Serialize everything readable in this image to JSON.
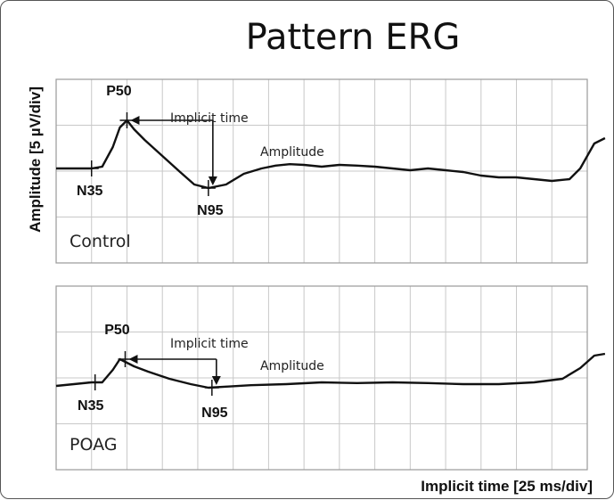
{
  "chart_data": {
    "type": "line",
    "title": "Pattern ERG",
    "xlabel": "Implicit time [25 ms/div]",
    "ylabel": "Amplitude [5 µV/div]",
    "panels": [
      {
        "name": "Control",
        "x": [
          0,
          0.5,
          1,
          1.3,
          1.6,
          1.8,
          2.0,
          2.2,
          2.5,
          3.0,
          3.5,
          3.9,
          4.3,
          4.8,
          5.3,
          5.8,
          6.2,
          6.6,
          7.0,
          7.5,
          8.0,
          8.5,
          9.0,
          9.5,
          10.0,
          10.5,
          11.0,
          11.5,
          12.0,
          12.5,
          13.0,
          13.5,
          14.0,
          14.5,
          14.8,
          15.2,
          15.5
        ],
        "y": [
          0,
          0,
          0,
          0.05,
          0.6,
          1.15,
          1.35,
          1.1,
          0.8,
          0.35,
          -0.1,
          -0.45,
          -0.55,
          -0.45,
          -0.15,
          0.0,
          0.08,
          0.12,
          0.1,
          0.05,
          0.1,
          0.08,
          0.05,
          0.0,
          -0.05,
          0.0,
          -0.05,
          -0.1,
          -0.2,
          -0.25,
          -0.25,
          -0.3,
          -0.35,
          -0.3,
          0.0,
          0.7,
          0.85
        ],
        "peaks": [
          {
            "label": "N35",
            "x": 1.0,
            "y": 0.0
          },
          {
            "label": "P50",
            "x": 2.0,
            "y": 1.35
          },
          {
            "label": "N95",
            "x": 4.3,
            "y": -0.55
          }
        ],
        "annotations": [
          "Implicit time",
          "Amplitude"
        ]
      },
      {
        "name": "POAG",
        "x": [
          0,
          0.5,
          1.0,
          1.3,
          1.6,
          1.8,
          2.0,
          2.2,
          2.6,
          3.2,
          3.8,
          4.3,
          4.8,
          5.5,
          6.5,
          7.5,
          8.5,
          9.5,
          10.5,
          11.5,
          12.5,
          13.5,
          14.3,
          14.8,
          15.2,
          15.5
        ],
        "y": [
          -0.1,
          -0.05,
          0.0,
          0.0,
          0.35,
          0.65,
          0.55,
          0.45,
          0.3,
          0.1,
          -0.05,
          -0.15,
          -0.12,
          -0.08,
          -0.05,
          0.0,
          -0.02,
          0.0,
          -0.02,
          -0.05,
          -0.05,
          0.0,
          0.1,
          0.4,
          0.75,
          0.8
        ],
        "peaks": [
          {
            "label": "N35",
            "x": 1.1,
            "y": 0.0
          },
          {
            "label": "P50",
            "x": 1.95,
            "y": 0.65
          },
          {
            "label": "N95",
            "x": 4.4,
            "y": -0.15
          }
        ],
        "annotations": [
          "Implicit time",
          "Amplitude"
        ]
      }
    ],
    "x_divisions": 15,
    "y_divisions": 4,
    "grid": true,
    "legend": "none"
  }
}
